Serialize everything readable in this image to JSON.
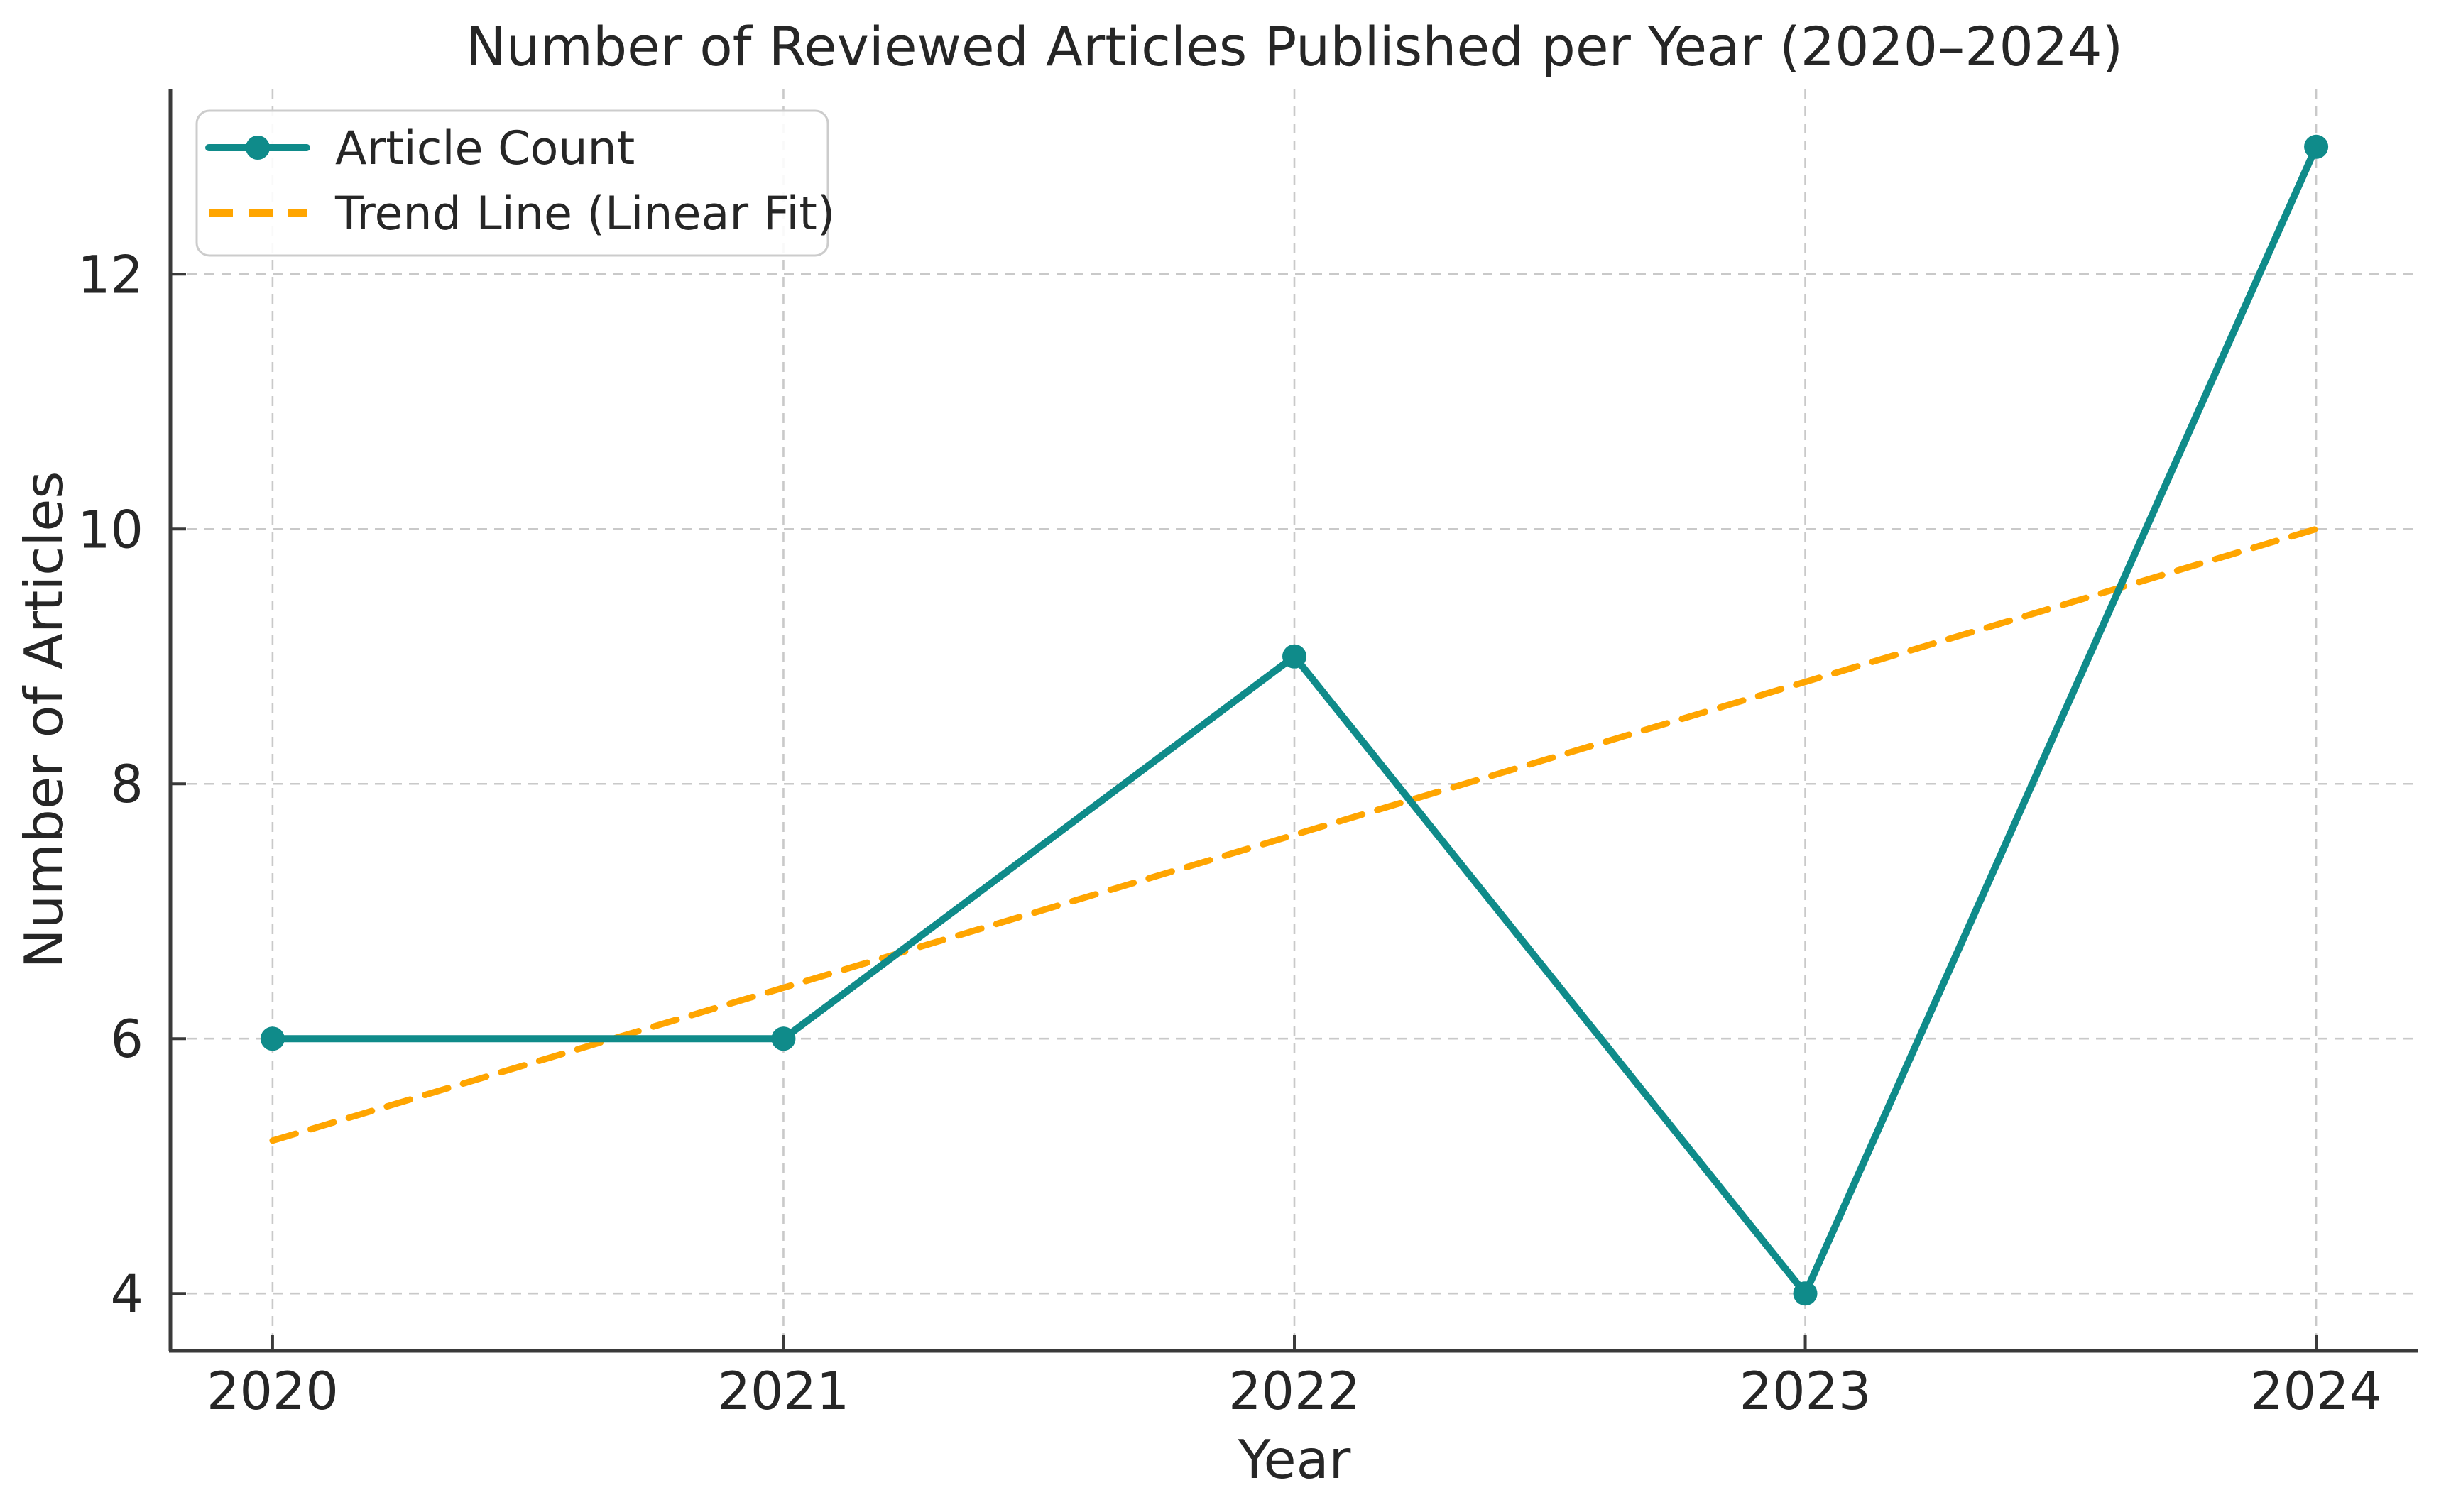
{
  "figure": {
    "title": "Number of Reviewed Articles Published per Year (2020–2024)",
    "xlabel": "Year",
    "ylabel": "Number of Articles",
    "background": "#ffffff"
  },
  "legend": {
    "position": "upper-left",
    "items": [
      {
        "label": "Article Count",
        "style": "solid-line-with-circle-marker"
      },
      {
        "label": "Trend Line (Linear Fit)",
        "style": "dashed-line"
      }
    ]
  },
  "chart_data": {
    "type": "line",
    "title": "Number of Reviewed Articles Published per Year (2020–2024)",
    "xlabel": "Year",
    "ylabel": "Number of Articles",
    "x": [
      2020,
      2021,
      2022,
      2023,
      2024
    ],
    "categories": [
      "2020",
      "2021",
      "2022",
      "2023",
      "2024"
    ],
    "series": [
      {
        "name": "Article Count",
        "values": [
          6,
          6,
          9,
          4,
          13
        ],
        "color": "#0f8b8a",
        "style": "solid",
        "marker": "circle"
      },
      {
        "name": "Trend Line (Linear Fit)",
        "values": [
          5.2,
          6.4,
          7.6,
          8.8,
          10.0
        ],
        "color": "#ffa500",
        "style": "dashed",
        "marker": "none"
      }
    ],
    "xticks": [
      2020,
      2021,
      2022,
      2023,
      2024
    ],
    "yticks": [
      4,
      6,
      8,
      10,
      12
    ],
    "xlim": [
      2019.8,
      2024.2
    ],
    "ylim": [
      3.55,
      13.45
    ],
    "grid": true,
    "grid_style": "dashed",
    "grid_color": "#c9c9c9",
    "spine_color": "#3a3a3a",
    "spines_visible": [
      "left",
      "bottom"
    ],
    "legend_position": "upper left"
  }
}
